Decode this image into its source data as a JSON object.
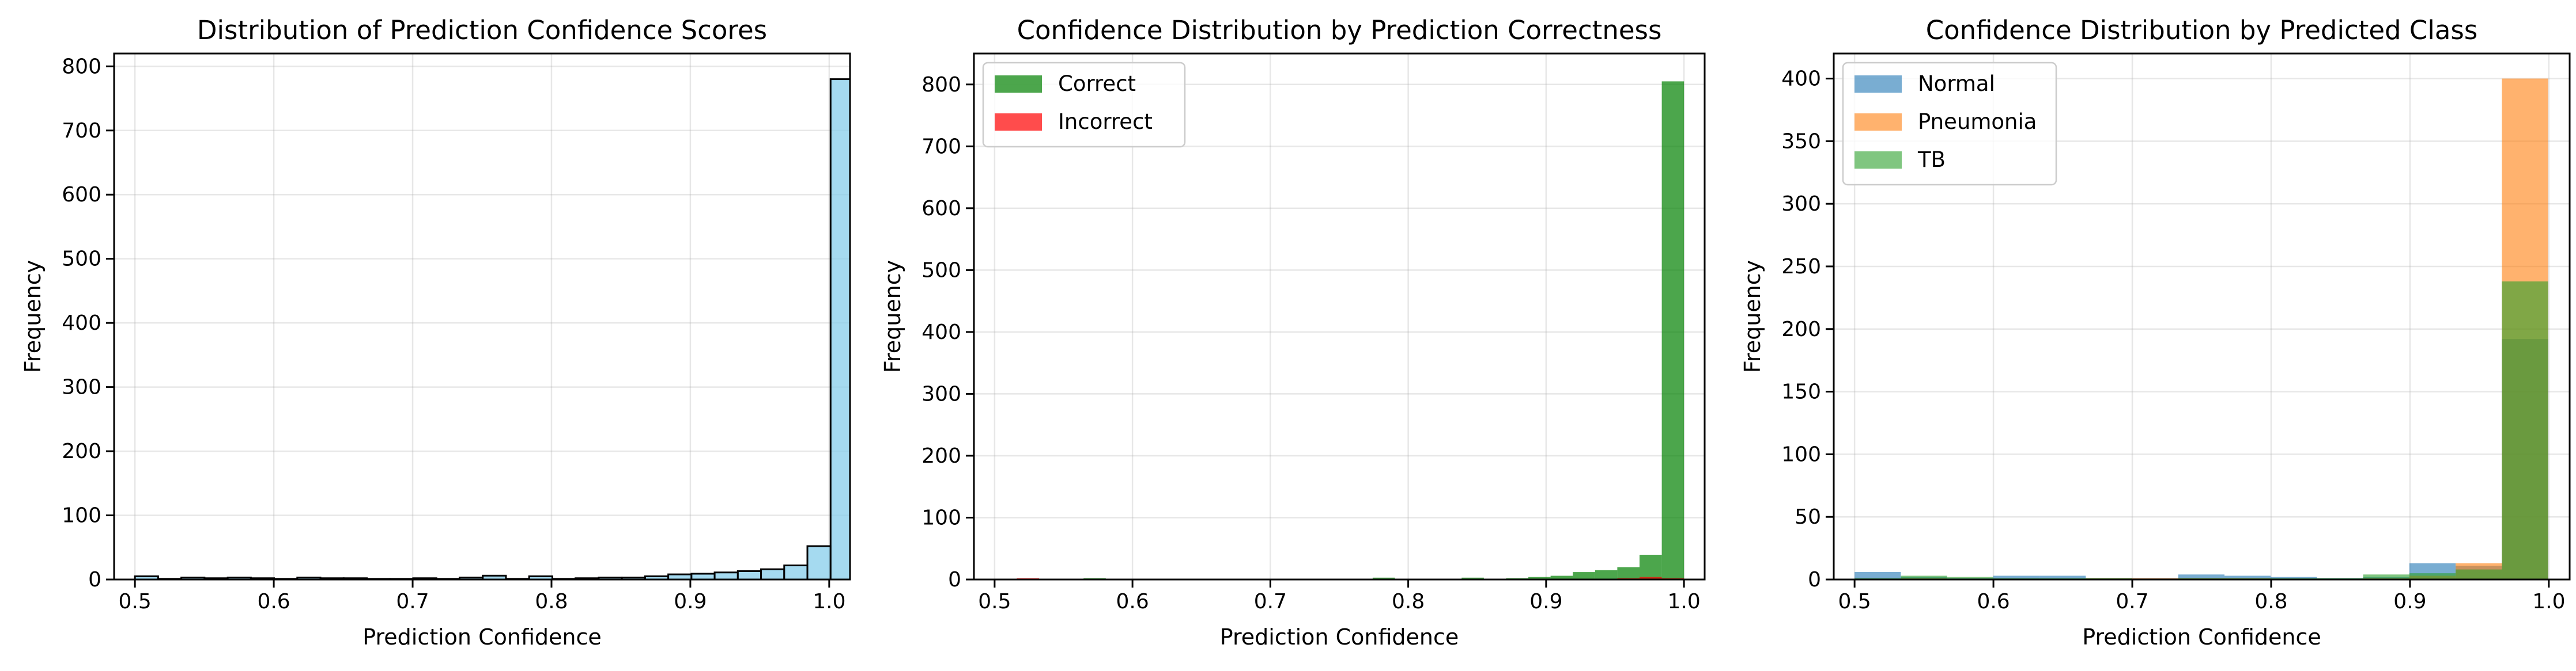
{
  "chart_data": [
    {
      "type": "bar",
      "title": "Distribution of Prediction Confidence Scores",
      "xlabel": "Prediction Confidence",
      "ylabel": "Frequency",
      "xlim": [
        0.485,
        1.015
      ],
      "ylim": [
        0,
        820
      ],
      "xticks": [
        "0.5",
        "0.6",
        "0.7",
        "0.8",
        "0.9",
        "1.0"
      ],
      "yticks": [
        "0",
        "100",
        "200",
        "300",
        "400",
        "500",
        "600",
        "700",
        "800"
      ],
      "grid": true,
      "bin_start": 0.5,
      "bin_width": 0.0167,
      "series": [
        {
          "color": "#87ceeb",
          "edge": "#000000",
          "alpha": 0.75,
          "values": [
            5,
            1,
            3,
            2,
            3,
            2,
            1,
            3,
            2,
            2,
            1,
            1,
            2,
            1,
            3,
            6,
            1,
            5,
            1,
            2,
            3,
            3,
            5,
            8,
            9,
            11,
            13,
            16,
            22,
            52,
            780
          ]
        }
      ]
    },
    {
      "type": "bar",
      "title": "Confidence Distribution by Prediction Correctness",
      "xlabel": "Prediction Confidence",
      "ylabel": "Frequency",
      "xlim": [
        0.485,
        1.015
      ],
      "ylim": [
        0,
        850
      ],
      "xticks": [
        "0.5",
        "0.6",
        "0.7",
        "0.8",
        "0.9",
        "1.0"
      ],
      "yticks": [
        "0",
        "100",
        "200",
        "300",
        "400",
        "500",
        "600",
        "700",
        "800"
      ],
      "grid": true,
      "legend": "top-left",
      "bin_start": 0.5,
      "bin_width": 0.01613,
      "series": [
        {
          "name": "Correct",
          "color": "#008000",
          "alpha": 0.7,
          "values": [
            1,
            1,
            0,
            1,
            2,
            1,
            1,
            1,
            0,
            1,
            1,
            1,
            1,
            1,
            0,
            1,
            1,
            3,
            1,
            1,
            1,
            3,
            1,
            2,
            4,
            6,
            12,
            15,
            20,
            40,
            805
          ]
        },
        {
          "name": "Incorrect",
          "color": "#ff0000",
          "alpha": 0.7,
          "values": [
            0,
            2,
            1,
            0,
            1,
            0,
            1,
            0,
            1,
            0,
            0,
            1,
            0,
            0,
            0,
            1,
            1,
            1,
            0,
            0,
            1,
            0,
            0,
            1,
            0,
            1,
            0,
            0,
            2,
            4,
            2
          ]
        }
      ]
    },
    {
      "type": "bar",
      "title": "Confidence Distribution by Predicted Class",
      "xlabel": "Prediction Confidence",
      "ylabel": "Frequency",
      "xlim": [
        0.485,
        1.015
      ],
      "ylim": [
        0,
        420
      ],
      "xticks": [
        "0.5",
        "0.6",
        "0.7",
        "0.8",
        "0.9",
        "1.0"
      ],
      "yticks": [
        "0",
        "50",
        "100",
        "150",
        "200",
        "250",
        "300",
        "350",
        "400"
      ],
      "grid": true,
      "legend": "top-left",
      "bin_start": 0.5,
      "bin_width": 0.0333,
      "series": [
        {
          "name": "Normal",
          "color": "#1f77b4",
          "alpha": 0.6,
          "values": [
            6,
            2,
            1,
            3,
            3,
            1,
            1,
            4,
            3,
            2,
            1,
            2,
            13,
            11,
            192
          ]
        },
        {
          "name": "Pneumonia",
          "color": "#ff7f0e",
          "alpha": 0.6,
          "values": [
            0,
            1,
            0,
            0,
            0,
            1,
            1,
            1,
            1,
            0,
            0,
            1,
            3,
            13,
            400
          ]
        },
        {
          "name": "TB",
          "color": "#2ca02c",
          "alpha": 0.6,
          "values": [
            1,
            3,
            2,
            1,
            1,
            1,
            0,
            1,
            1,
            1,
            1,
            4,
            5,
            8,
            238
          ]
        }
      ]
    }
  ]
}
